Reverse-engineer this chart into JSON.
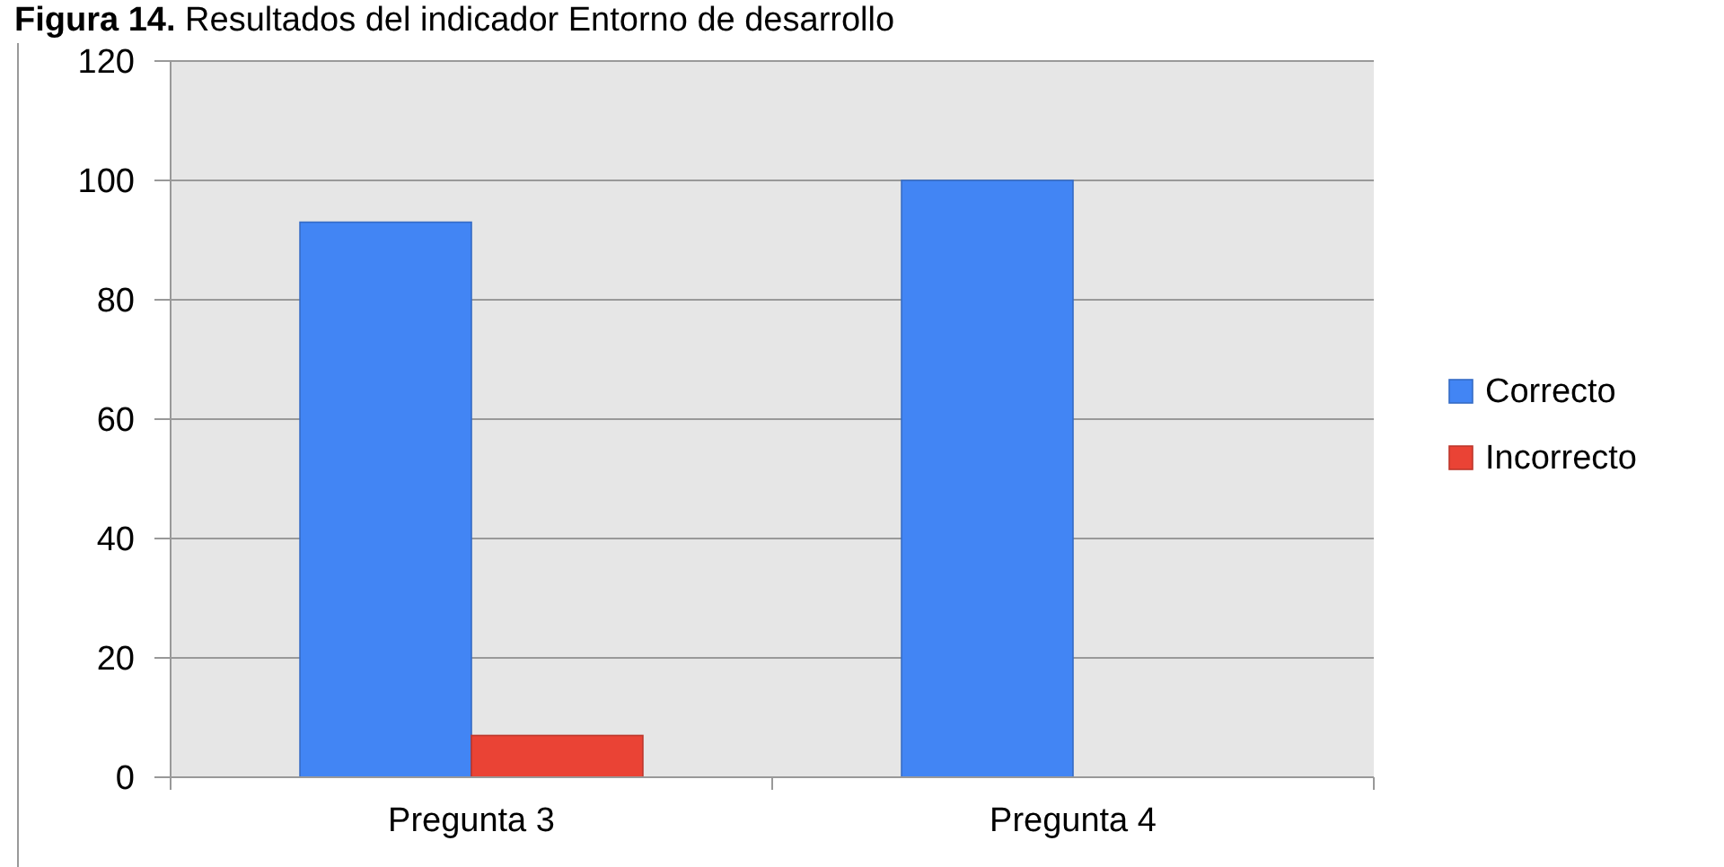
{
  "chart_data": {
    "type": "bar",
    "title": "Figura 14. Resultados del indicador Entorno de desarrollo",
    "categories": [
      "Pregunta 3",
      "Pregunta 4"
    ],
    "series": [
      {
        "name": "Correcto",
        "color": "#4285f4",
        "values": [
          93,
          100
        ]
      },
      {
        "name": "Incorrecto",
        "color": "#ea4335",
        "values": [
          7,
          0
        ]
      }
    ],
    "ylim": [
      0,
      120
    ],
    "yticks": [
      0,
      20,
      40,
      60,
      80,
      100,
      120
    ],
    "grid": "y",
    "legend": "right"
  }
}
